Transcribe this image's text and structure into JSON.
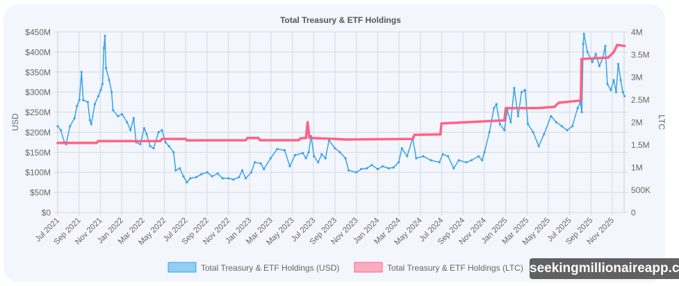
{
  "chart_data": {
    "type": "line",
    "title": "Total Treasury & ETF Holdings",
    "ylabel": "USD",
    "y2label": "LTC",
    "ylim": [
      0,
      450
    ],
    "y2lim": [
      0,
      4
    ],
    "y_ticks": [
      "$0",
      "$50M",
      "$100M",
      "$150M",
      "$200M",
      "$250M",
      "$300M",
      "$350M",
      "$400M",
      "$450M"
    ],
    "y2_ticks": [
      "0",
      "500K",
      "1M",
      "1.5M",
      "2M",
      "2.5M",
      "3M",
      "3.5M",
      "4M"
    ],
    "x_ticks": [
      "Jul 2021",
      "Sep 2021",
      "Nov 2021",
      "Jan 2022",
      "Mar 2022",
      "May 2022",
      "Jul 2022",
      "Sep 2022",
      "Nov 2022",
      "Jan 2023",
      "Mar 2023",
      "May 2023",
      "Jul 2023",
      "Sep 2023",
      "Nov 2023",
      "Jan 2024",
      "Mar 2024",
      "May 2024",
      "Jul 2024",
      "Sep 2024",
      "Nov 2024",
      "Jan 2025",
      "Mar 2025",
      "May 2025",
      "Jul 2025",
      "Sep 2025",
      "Nov 2025"
    ],
    "grid": true,
    "legend_position": "bottom",
    "series": [
      {
        "name": "Total Treasury & ETF Holdings (USD)",
        "axis": "left",
        "unit": "USD millions",
        "color": "#36a2eb",
        "points": [
          [
            "2021-07-01",
            215
          ],
          [
            "2021-07-10",
            205
          ],
          [
            "2021-07-20",
            175
          ],
          [
            "2021-07-25",
            170
          ],
          [
            "2021-08-05",
            215
          ],
          [
            "2021-08-18",
            235
          ],
          [
            "2021-08-25",
            265
          ],
          [
            "2021-09-01",
            280
          ],
          [
            "2021-09-07",
            350
          ],
          [
            "2021-09-12",
            280
          ],
          [
            "2021-09-25",
            275
          ],
          [
            "2021-10-01",
            230
          ],
          [
            "2021-10-05",
            220
          ],
          [
            "2021-10-15",
            270
          ],
          [
            "2021-10-25",
            290
          ],
          [
            "2021-11-01",
            305
          ],
          [
            "2021-11-06",
            320
          ],
          [
            "2021-11-10",
            410
          ],
          [
            "2021-11-13",
            440
          ],
          [
            "2021-11-16",
            360
          ],
          [
            "2021-11-25",
            330
          ],
          [
            "2021-12-02",
            300
          ],
          [
            "2021-12-06",
            255
          ],
          [
            "2021-12-20",
            240
          ],
          [
            "2022-01-01",
            245
          ],
          [
            "2022-01-15",
            225
          ],
          [
            "2022-01-25",
            205
          ],
          [
            "2022-02-03",
            235
          ],
          [
            "2022-02-10",
            175
          ],
          [
            "2022-02-22",
            170
          ],
          [
            "2022-03-05",
            210
          ],
          [
            "2022-03-12",
            195
          ],
          [
            "2022-03-22",
            165
          ],
          [
            "2022-04-01",
            160
          ],
          [
            "2022-04-15",
            200
          ],
          [
            "2022-04-25",
            205
          ],
          [
            "2022-05-05",
            175
          ],
          [
            "2022-05-15",
            165
          ],
          [
            "2022-05-28",
            150
          ],
          [
            "2022-06-03",
            105
          ],
          [
            "2022-06-15",
            110
          ],
          [
            "2022-06-25",
            90
          ],
          [
            "2022-07-05",
            75
          ],
          [
            "2022-07-15",
            85
          ],
          [
            "2022-08-01",
            88
          ],
          [
            "2022-08-15",
            95
          ],
          [
            "2022-09-01",
            100
          ],
          [
            "2022-09-15",
            90
          ],
          [
            "2022-10-01",
            97
          ],
          [
            "2022-10-15",
            85
          ],
          [
            "2022-11-01",
            85
          ],
          [
            "2022-11-15",
            82
          ],
          [
            "2022-12-01",
            88
          ],
          [
            "2022-12-10",
            105
          ],
          [
            "2022-12-20",
            85
          ],
          [
            "2023-01-05",
            100
          ],
          [
            "2023-01-15",
            125
          ],
          [
            "2023-02-01",
            122
          ],
          [
            "2023-02-10",
            108
          ],
          [
            "2023-03-01",
            135
          ],
          [
            "2023-03-20",
            158
          ],
          [
            "2023-04-10",
            155
          ],
          [
            "2023-04-25",
            115
          ],
          [
            "2023-05-10",
            143
          ],
          [
            "2023-06-01",
            148
          ],
          [
            "2023-06-10",
            135
          ],
          [
            "2023-06-18",
            150
          ],
          [
            "2023-06-25",
            190
          ],
          [
            "2023-07-03",
            140
          ],
          [
            "2023-07-15",
            125
          ],
          [
            "2023-07-25",
            145
          ],
          [
            "2023-08-05",
            135
          ],
          [
            "2023-08-15",
            180
          ],
          [
            "2023-09-01",
            160
          ],
          [
            "2023-09-15",
            150
          ],
          [
            "2023-10-01",
            135
          ],
          [
            "2023-10-10",
            105
          ],
          [
            "2023-11-01",
            100
          ],
          [
            "2023-11-15",
            108
          ],
          [
            "2023-12-01",
            110
          ],
          [
            "2023-12-15",
            118
          ],
          [
            "2024-01-01",
            108
          ],
          [
            "2024-01-15",
            115
          ],
          [
            "2024-02-01",
            110
          ],
          [
            "2024-02-15",
            112
          ],
          [
            "2024-03-01",
            125
          ],
          [
            "2024-03-10",
            160
          ],
          [
            "2024-03-25",
            140
          ],
          [
            "2024-04-10",
            185
          ],
          [
            "2024-04-20",
            135
          ],
          [
            "2024-05-10",
            140
          ],
          [
            "2024-06-01",
            130
          ],
          [
            "2024-06-25",
            125
          ],
          [
            "2024-07-05",
            145
          ],
          [
            "2024-07-20",
            140
          ],
          [
            "2024-08-05",
            110
          ],
          [
            "2024-08-20",
            130
          ],
          [
            "2024-09-10",
            125
          ],
          [
            "2024-09-25",
            130
          ],
          [
            "2024-10-15",
            140
          ],
          [
            "2024-10-25",
            130
          ],
          [
            "2024-11-01",
            150
          ],
          [
            "2024-11-15",
            200
          ],
          [
            "2024-11-28",
            260
          ],
          [
            "2024-12-05",
            270
          ],
          [
            "2024-12-15",
            220
          ],
          [
            "2024-12-28",
            205
          ],
          [
            "2025-01-05",
            255
          ],
          [
            "2025-01-15",
            225
          ],
          [
            "2025-01-25",
            310
          ],
          [
            "2025-02-05",
            240
          ],
          [
            "2025-02-15",
            300
          ],
          [
            "2025-02-25",
            305
          ],
          [
            "2025-03-05",
            220
          ],
          [
            "2025-03-20",
            200
          ],
          [
            "2025-04-05",
            165
          ],
          [
            "2025-04-20",
            195
          ],
          [
            "2025-05-10",
            240
          ],
          [
            "2025-05-25",
            225
          ],
          [
            "2025-06-10",
            215
          ],
          [
            "2025-06-25",
            205
          ],
          [
            "2025-07-10",
            215
          ],
          [
            "2025-07-25",
            260
          ],
          [
            "2025-08-02",
            275
          ],
          [
            "2025-08-06",
            250
          ],
          [
            "2025-08-10",
            420
          ],
          [
            "2025-08-12",
            445
          ],
          [
            "2025-08-22",
            400
          ],
          [
            "2025-09-05",
            375
          ],
          [
            "2025-09-15",
            395
          ],
          [
            "2025-09-25",
            365
          ],
          [
            "2025-10-05",
            385
          ],
          [
            "2025-10-12",
            415
          ],
          [
            "2025-10-18",
            320
          ],
          [
            "2025-10-28",
            305
          ],
          [
            "2025-11-05",
            330
          ],
          [
            "2025-11-12",
            300
          ],
          [
            "2025-11-18",
            370
          ],
          [
            "2025-11-25",
            330
          ],
          [
            "2025-12-01",
            300
          ],
          [
            "2025-12-06",
            290
          ]
        ]
      },
      {
        "name": "Total Treasury & ETF Holdings (LTC)",
        "axis": "right",
        "unit": "LTC millions",
        "color": "#ff6384",
        "points": [
          [
            "2021-07-01",
            1.54
          ],
          [
            "2021-10-20",
            1.54
          ],
          [
            "2021-10-25",
            1.58
          ],
          [
            "2022-04-20",
            1.58
          ],
          [
            "2022-04-25",
            1.63
          ],
          [
            "2022-07-01",
            1.63
          ],
          [
            "2022-07-05",
            1.595
          ],
          [
            "2022-12-20",
            1.6
          ],
          [
            "2022-12-25",
            1.65
          ],
          [
            "2023-01-25",
            1.65
          ],
          [
            "2023-01-30",
            1.6
          ],
          [
            "2023-05-20",
            1.6
          ],
          [
            "2023-05-25",
            1.64
          ],
          [
            "2023-06-10",
            1.65
          ],
          [
            "2023-06-15",
            2.0
          ],
          [
            "2023-06-20",
            1.65
          ],
          [
            "2023-09-01",
            1.63
          ],
          [
            "2023-10-01",
            1.615
          ],
          [
            "2024-04-10",
            1.63
          ],
          [
            "2024-04-15",
            1.72
          ],
          [
            "2024-06-28",
            1.73
          ],
          [
            "2024-07-01",
            1.97
          ],
          [
            "2024-12-28",
            2.04
          ],
          [
            "2025-01-01",
            2.31
          ],
          [
            "2025-04-01",
            2.31
          ],
          [
            "2025-05-20",
            2.34
          ],
          [
            "2025-06-01",
            2.43
          ],
          [
            "2025-08-03",
            2.48
          ],
          [
            "2025-08-05",
            3.4
          ],
          [
            "2025-10-20",
            3.43
          ],
          [
            "2025-11-05",
            3.55
          ],
          [
            "2025-11-15",
            3.71
          ],
          [
            "2025-12-06",
            3.69
          ]
        ]
      }
    ]
  },
  "watermark": "seekingmillionaireapp.com"
}
